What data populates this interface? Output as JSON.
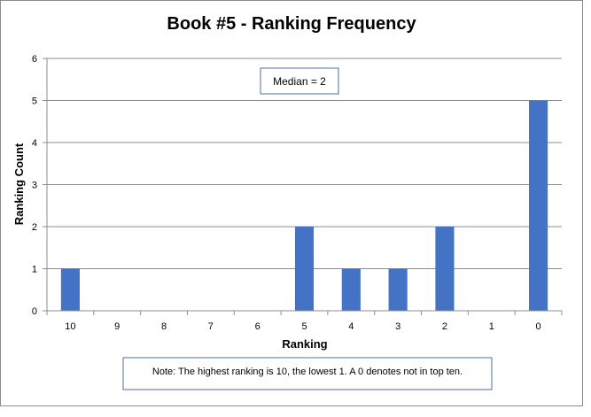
{
  "chart_data": {
    "type": "bar",
    "title": "Book #5 - Ranking Frequency",
    "xlabel": "Ranking",
    "ylabel": "Ranking Count",
    "categories": [
      "10",
      "9",
      "8",
      "7",
      "6",
      "5",
      "4",
      "3",
      "2",
      "1",
      "0"
    ],
    "values": [
      1,
      0,
      0,
      0,
      0,
      2,
      1,
      1,
      2,
      0,
      5
    ],
    "ylim": [
      0,
      6
    ],
    "yticks": [
      "0",
      "1",
      "2",
      "3",
      "4",
      "5",
      "6"
    ],
    "grid": true,
    "bar_color": "#4472C4",
    "annotations": {
      "median": "Median = 2",
      "note": "Note: The highest ranking is 10, the lowest 1. A 0 denotes not in top ten."
    }
  }
}
